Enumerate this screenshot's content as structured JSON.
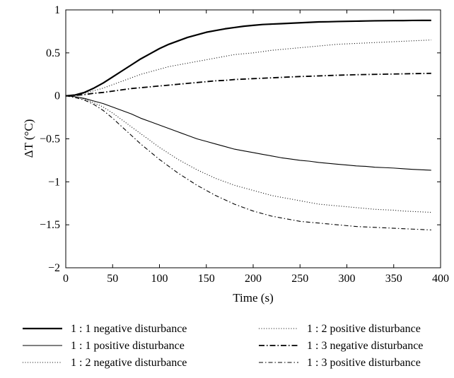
{
  "chart_data": {
    "type": "line",
    "xlabel": "Time (s)",
    "ylabel": "ΔT (°C)",
    "xlim": [
      0,
      400
    ],
    "ylim": [
      -2,
      1
    ],
    "xticks": [
      0,
      50,
      100,
      150,
      200,
      250,
      300,
      350,
      400
    ],
    "yticks": [
      1,
      0.5,
      0,
      -0.5,
      -1,
      -1.5,
      -2
    ],
    "xtick_labels": [
      "0",
      "50",
      "100",
      "150",
      "200",
      "250",
      "300",
      "350",
      "400"
    ],
    "ytick_labels": [
      "1",
      "0.5",
      "0",
      "−0.5",
      "−1",
      "−1.5",
      "−2"
    ],
    "grid": false,
    "legend_position": "bottom",
    "x": [
      0,
      10,
      20,
      30,
      40,
      50,
      60,
      70,
      80,
      90,
      100,
      110,
      120,
      130,
      140,
      150,
      160,
      170,
      180,
      190,
      200,
      210,
      220,
      230,
      240,
      250,
      260,
      270,
      280,
      290,
      300,
      310,
      320,
      330,
      340,
      350,
      360,
      370,
      380,
      390
    ],
    "series": [
      {
        "name": "1 : 1 negative disturbance",
        "style": "thick-solid",
        "values": [
          0,
          0.01,
          0.04,
          0.09,
          0.15,
          0.22,
          0.29,
          0.36,
          0.43,
          0.49,
          0.55,
          0.6,
          0.64,
          0.68,
          0.71,
          0.74,
          0.76,
          0.78,
          0.795,
          0.81,
          0.82,
          0.83,
          0.835,
          0.84,
          0.845,
          0.85,
          0.855,
          0.86,
          0.862,
          0.865,
          0.867,
          0.869,
          0.871,
          0.873,
          0.874,
          0.875,
          0.876,
          0.877,
          0.878,
          0.878
        ]
      },
      {
        "name": "1 : 1 positive disturbance",
        "style": "thin-solid",
        "values": [
          0,
          -0.01,
          -0.03,
          -0.06,
          -0.09,
          -0.13,
          -0.17,
          -0.21,
          -0.26,
          -0.3,
          -0.34,
          -0.38,
          -0.42,
          -0.46,
          -0.5,
          -0.53,
          -0.56,
          -0.59,
          -0.62,
          -0.64,
          -0.66,
          -0.68,
          -0.7,
          -0.72,
          -0.735,
          -0.75,
          -0.76,
          -0.775,
          -0.785,
          -0.795,
          -0.805,
          -0.815,
          -0.82,
          -0.83,
          -0.835,
          -0.84,
          -0.848,
          -0.855,
          -0.86,
          -0.865
        ]
      },
      {
        "name": "1 : 2 negative disturbance",
        "style": "dotted",
        "values": [
          0,
          -0.01,
          -0.04,
          -0.08,
          -0.13,
          -0.2,
          -0.28,
          -0.36,
          -0.44,
          -0.52,
          -0.6,
          -0.67,
          -0.74,
          -0.8,
          -0.86,
          -0.91,
          -0.96,
          -1.0,
          -1.04,
          -1.07,
          -1.1,
          -1.13,
          -1.16,
          -1.18,
          -1.2,
          -1.22,
          -1.24,
          -1.26,
          -1.27,
          -1.28,
          -1.29,
          -1.3,
          -1.31,
          -1.32,
          -1.325,
          -1.33,
          -1.34,
          -1.345,
          -1.35,
          -1.355
        ]
      },
      {
        "name": "1 : 2 positive disturbance",
        "style": "dotted",
        "values": [
          0,
          0.01,
          0.03,
          0.06,
          0.09,
          0.13,
          0.17,
          0.21,
          0.25,
          0.28,
          0.31,
          0.34,
          0.36,
          0.38,
          0.4,
          0.42,
          0.44,
          0.46,
          0.48,
          0.49,
          0.5,
          0.515,
          0.53,
          0.54,
          0.55,
          0.56,
          0.57,
          0.58,
          0.59,
          0.6,
          0.605,
          0.61,
          0.615,
          0.62,
          0.625,
          0.63,
          0.635,
          0.64,
          0.645,
          0.65
        ]
      },
      {
        "name": "1 : 3 negative disturbance",
        "style": "dash-dot-thick",
        "values": [
          0,
          0.005,
          0.015,
          0.03,
          0.04,
          0.055,
          0.07,
          0.085,
          0.095,
          0.105,
          0.115,
          0.125,
          0.135,
          0.145,
          0.155,
          0.165,
          0.175,
          0.18,
          0.19,
          0.195,
          0.2,
          0.205,
          0.21,
          0.215,
          0.22,
          0.225,
          0.228,
          0.232,
          0.236,
          0.24,
          0.243,
          0.246,
          0.248,
          0.25,
          0.252,
          0.254,
          0.256,
          0.258,
          0.26,
          0.262
        ]
      },
      {
        "name": "1 : 3 positive disturbance",
        "style": "dash-dot",
        "values": [
          0,
          -0.02,
          -0.05,
          -0.1,
          -0.17,
          -0.26,
          -0.36,
          -0.46,
          -0.56,
          -0.65,
          -0.74,
          -0.82,
          -0.9,
          -0.97,
          -1.04,
          -1.1,
          -1.16,
          -1.21,
          -1.26,
          -1.3,
          -1.34,
          -1.37,
          -1.4,
          -1.42,
          -1.44,
          -1.46,
          -1.47,
          -1.48,
          -1.49,
          -1.5,
          -1.51,
          -1.52,
          -1.525,
          -1.53,
          -1.535,
          -1.54,
          -1.545,
          -1.55,
          -1.555,
          -1.56
        ]
      }
    ],
    "legend_order": [
      0,
      3,
      1,
      4,
      2,
      5
    ]
  }
}
